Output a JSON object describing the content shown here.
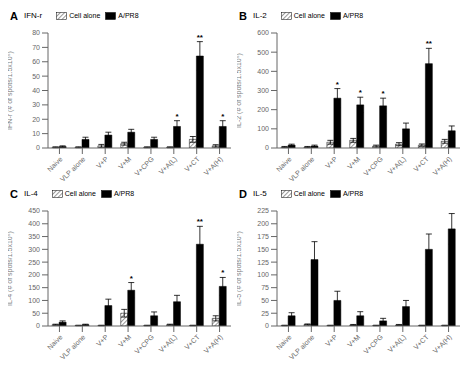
{
  "chart_data": [
    {
      "type": "bar",
      "title": "IFN-r",
      "ylabel": "IFN-r (# of spots/1.5x10⁶)",
      "categories": [
        "Naive",
        "VLP alone",
        "V+P",
        "V+M",
        "V+CPG",
        "V+A(L)",
        "V+CT",
        "V+A(H)"
      ],
      "series": [
        {
          "name": "Cell alone",
          "color": "#ffffff",
          "values": [
            0.5,
            0.5,
            1.5,
            3,
            0.5,
            0.5,
            6,
            1.5
          ],
          "errors": [
            0.3,
            0.3,
            1,
            1,
            0.3,
            0.3,
            2,
            0.8
          ]
        },
        {
          "name": "A/PR8",
          "color": "#000000",
          "values": [
            1,
            6,
            9,
            11,
            6,
            15,
            64,
            15
          ],
          "errors": [
            0.5,
            1.5,
            2,
            2,
            1.5,
            4,
            10,
            4
          ]
        }
      ],
      "ylim": [
        0,
        80
      ],
      "yticks": [
        0,
        10,
        20,
        30,
        40,
        50,
        60,
        70,
        80
      ],
      "legend": "top",
      "annotations": [
        {
          "text": "A"
        },
        {
          "text": "*",
          "category": "V+A(L)",
          "series": "A/PR8"
        },
        {
          "text": "**",
          "category": "V+CT",
          "series": "A/PR8"
        },
        {
          "text": "*",
          "category": "V+A(H)",
          "series": "A/PR8"
        }
      ]
    },
    {
      "type": "bar",
      "title": "IL-2",
      "ylabel": "IL-2 (# of spots/1.5x10⁶)",
      "categories": [
        "Naive",
        "VLP alone",
        "V+P",
        "V+M",
        "V+CPG",
        "V+A(L)",
        "V+CT",
        "V+A(H)"
      ],
      "series": [
        {
          "name": "Cell alone",
          "color": "#ffffff",
          "values": [
            5,
            5,
            30,
            40,
            10,
            20,
            15,
            35
          ],
          "errors": [
            3,
            3,
            10,
            10,
            5,
            8,
            6,
            10
          ]
        },
        {
          "name": "A/PR8",
          "color": "#000000",
          "values": [
            15,
            10,
            260,
            225,
            220,
            100,
            440,
            90
          ],
          "errors": [
            5,
            5,
            50,
            40,
            40,
            30,
            80,
            25
          ]
        }
      ],
      "ylim": [
        0,
        600
      ],
      "yticks": [
        0,
        100,
        200,
        300,
        400,
        500,
        600
      ],
      "legend": "top",
      "annotations": [
        {
          "text": "B"
        },
        {
          "text": "*",
          "category": "V+P",
          "series": "A/PR8"
        },
        {
          "text": "*",
          "category": "V+M",
          "series": "A/PR8"
        },
        {
          "text": "*",
          "category": "V+CPG",
          "series": "A/PR8"
        },
        {
          "text": "**",
          "category": "V+CT",
          "series": "A/PR8"
        }
      ]
    },
    {
      "type": "bar",
      "title": "IL-4",
      "ylabel": "IL-4 (# of spots/1.5x10⁶)",
      "categories": [
        "Naive",
        "VLP alone",
        "V+P",
        "V+M",
        "V+CPG",
        "V+A(L)",
        "V+CT",
        "V+A(H)"
      ],
      "series": [
        {
          "name": "Cell alone",
          "color": "#ffffff",
          "values": [
            5,
            2,
            2,
            50,
            2,
            5,
            2,
            30
          ],
          "errors": [
            2,
            1,
            1,
            15,
            1,
            2,
            1,
            10
          ]
        },
        {
          "name": "A/PR8",
          "color": "#000000",
          "values": [
            15,
            5,
            80,
            140,
            40,
            95,
            320,
            155
          ],
          "errors": [
            5,
            2,
            25,
            30,
            15,
            25,
            70,
            35
          ]
        }
      ],
      "ylim": [
        0,
        450
      ],
      "yticks": [
        0,
        50,
        100,
        150,
        200,
        250,
        300,
        350,
        400,
        450
      ],
      "legend": "top",
      "annotations": [
        {
          "text": "C"
        },
        {
          "text": "*",
          "category": "V+M",
          "series": "A/PR8"
        },
        {
          "text": "**",
          "category": "V+CT",
          "series": "A/PR8"
        },
        {
          "text": "*",
          "category": "V+A(H)",
          "series": "A/PR8"
        }
      ]
    },
    {
      "type": "bar",
      "title": "IL-5",
      "ylabel": "IL-5 (# of spots/1.5x10⁶)",
      "categories": [
        "Naive",
        "VLP alone",
        "V+P",
        "V+M",
        "V+CPG",
        "V+A(L)",
        "V+CT",
        "V+A(H)"
      ],
      "series": [
        {
          "name": "Cell alone",
          "color": "#ffffff",
          "values": [
            1,
            3,
            1,
            2,
            1,
            2,
            1,
            1
          ],
          "errors": [
            0.5,
            1,
            0.5,
            1,
            0.5,
            1,
            0.5,
            0.5
          ]
        },
        {
          "name": "A/PR8",
          "color": "#000000",
          "values": [
            20,
            130,
            50,
            20,
            10,
            38,
            150,
            190
          ],
          "errors": [
            6,
            35,
            18,
            8,
            5,
            12,
            30,
            30
          ]
        }
      ],
      "ylim": [
        0,
        225
      ],
      "yticks": [
        0,
        25,
        50,
        75,
        100,
        125,
        150,
        175,
        200,
        225
      ],
      "legend": "top",
      "annotations": [
        {
          "text": "D"
        }
      ]
    }
  ]
}
